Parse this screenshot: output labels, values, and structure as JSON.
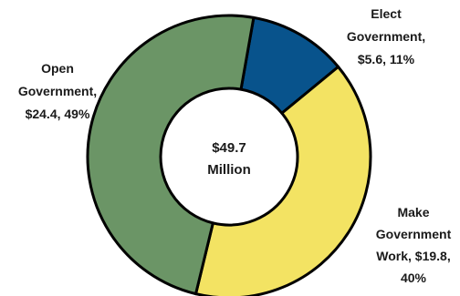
{
  "chart_data": {
    "type": "pie",
    "variant": "donut",
    "center_label": {
      "line1": "$49.7",
      "line2": "Million"
    },
    "total": 49.7,
    "unit": "$ Million",
    "slices": [
      {
        "name": "Elect Government",
        "value": 5.6,
        "percent": 11,
        "color": "#08538c",
        "label_lines": [
          "Elect",
          "Government,",
          "$5.6, 11%"
        ]
      },
      {
        "name": "Make Government Work",
        "value": 19.8,
        "percent": 40,
        "color": "#f3e363",
        "label_lines": [
          "Make",
          "Government",
          "Work, $19.8,",
          "40%"
        ]
      },
      {
        "name": "Open Government",
        "value": 24.4,
        "percent": 49,
        "color": "#6b9566",
        "label_lines": [
          "Open",
          "Government,",
          "$24.4, 49%"
        ]
      }
    ],
    "start_angle_deg": 10,
    "legend": "none"
  }
}
